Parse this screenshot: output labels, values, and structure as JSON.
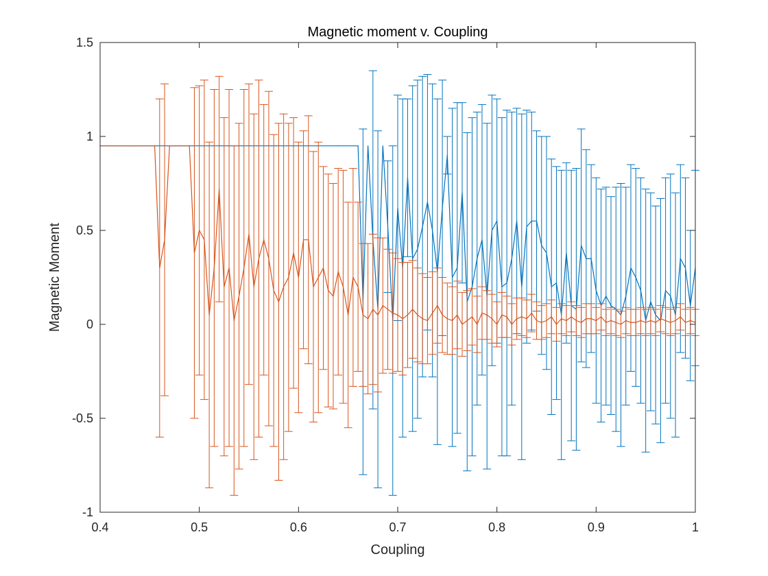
{
  "chart_data": {
    "type": "line",
    "title": "Magnetic moment v. Coupling",
    "xlabel": "Coupling",
    "ylabel": "Magnetic Moment",
    "xlim": [
      0.4,
      1
    ],
    "ylim": [
      -1,
      1.5
    ],
    "xticks": [
      0.4,
      0.5,
      0.6,
      0.7,
      0.8,
      0.9,
      1
    ],
    "yticks": [
      -1,
      -0.5,
      0,
      0.5,
      1,
      1.5
    ],
    "xtick_labels": [
      "0.4",
      "0.5",
      "0.6",
      "0.7",
      "0.8",
      "0.9",
      "1"
    ],
    "ytick_labels": [
      "-1",
      "-0.5",
      "0",
      "0.5",
      "1",
      "1.5"
    ],
    "grid": false,
    "error_bars": true,
    "series": [
      {
        "color": "#0072BD",
        "x": [
          0.4,
          0.43,
          0.46,
          0.49,
          0.52,
          0.55,
          0.58,
          0.61,
          0.64,
          0.66,
          0.665,
          0.67,
          0.675,
          0.68,
          0.685,
          0.69,
          0.695,
          0.7,
          0.705,
          0.71,
          0.715,
          0.72,
          0.725,
          0.73,
          0.735,
          0.74,
          0.745,
          0.75,
          0.755,
          0.76,
          0.765,
          0.77,
          0.775,
          0.78,
          0.785,
          0.79,
          0.795,
          0.8,
          0.805,
          0.81,
          0.815,
          0.82,
          0.825,
          0.83,
          0.835,
          0.84,
          0.845,
          0.85,
          0.855,
          0.86,
          0.865,
          0.87,
          0.875,
          0.88,
          0.885,
          0.89,
          0.895,
          0.9,
          0.905,
          0.91,
          0.915,
          0.92,
          0.925,
          0.93,
          0.935,
          0.94,
          0.945,
          0.95,
          0.955,
          0.96,
          0.965,
          0.97,
          0.975,
          0.98,
          0.985,
          0.99,
          0.995,
          1.0
        ],
        "y": [
          0.95,
          0.95,
          0.95,
          0.95,
          0.95,
          0.95,
          0.95,
          0.95,
          0.95,
          0.95,
          0.12,
          0.95,
          0.45,
          0.08,
          0.95,
          0.52,
          0.02,
          0.62,
          0.3,
          0.78,
          0.35,
          0.4,
          0.52,
          0.65,
          0.5,
          0.28,
          0.62,
          0.9,
          0.25,
          0.3,
          0.7,
          0.12,
          0.2,
          0.35,
          0.45,
          0.15,
          0.5,
          0.55,
          0.2,
          0.22,
          0.35,
          0.55,
          0.2,
          0.52,
          0.55,
          0.55,
          0.42,
          0.38,
          0.2,
          0.22,
          0.05,
          0.38,
          0.1,
          0.08,
          0.42,
          0.35,
          0.35,
          0.18,
          0.1,
          0.15,
          0.1,
          0.08,
          0.05,
          0.15,
          0.3,
          0.25,
          0.18,
          0.02,
          0.12,
          0.05,
          0.02,
          0.18,
          0.15,
          0.05,
          0.35,
          0.3,
          0.1,
          0.3
        ],
        "err": [
          0,
          0,
          0,
          0,
          0,
          0,
          0,
          0,
          0,
          0,
          0.92,
          0,
          0.9,
          0.95,
          0,
          0.35,
          0.93,
          0.6,
          0.9,
          0.42,
          0.92,
          0.9,
          0.8,
          0.68,
          0.78,
          0.92,
          0.68,
          0.1,
          0.9,
          0.88,
          0.48,
          0.9,
          0.9,
          0.78,
          0.72,
          0.92,
          0.72,
          0.65,
          0.9,
          0.92,
          0.78,
          0.6,
          0.92,
          0.62,
          0.58,
          0.48,
          0.58,
          0.62,
          0.68,
          0.62,
          0.77,
          0.48,
          0.72,
          0.75,
          0.62,
          0.58,
          0.5,
          0.6,
          0.62,
          0.58,
          0.58,
          0.65,
          0.7,
          0.58,
          0.55,
          0.58,
          0.6,
          0.7,
          0.58,
          0.58,
          0.65,
          0.6,
          0.65,
          0.65,
          0.5,
          0.48,
          0.4,
          0.52
        ]
      },
      {
        "color": "#D95319",
        "x": [
          0.4,
          0.43,
          0.455,
          0.46,
          0.465,
          0.47,
          0.49,
          0.495,
          0.5,
          0.505,
          0.51,
          0.515,
          0.52,
          0.525,
          0.53,
          0.535,
          0.54,
          0.545,
          0.55,
          0.555,
          0.56,
          0.565,
          0.57,
          0.575,
          0.58,
          0.585,
          0.59,
          0.595,
          0.6,
          0.605,
          0.61,
          0.615,
          0.62,
          0.625,
          0.63,
          0.635,
          0.64,
          0.645,
          0.65,
          0.655,
          0.66,
          0.665,
          0.67,
          0.675,
          0.68,
          0.685,
          0.69,
          0.695,
          0.7,
          0.705,
          0.71,
          0.715,
          0.72,
          0.725,
          0.73,
          0.735,
          0.74,
          0.745,
          0.75,
          0.755,
          0.76,
          0.765,
          0.77,
          0.775,
          0.78,
          0.785,
          0.79,
          0.795,
          0.8,
          0.805,
          0.81,
          0.815,
          0.82,
          0.825,
          0.83,
          0.835,
          0.84,
          0.845,
          0.85,
          0.855,
          0.86,
          0.865,
          0.87,
          0.875,
          0.88,
          0.885,
          0.89,
          0.895,
          0.9,
          0.905,
          0.91,
          0.915,
          0.92,
          0.925,
          0.93,
          0.935,
          0.94,
          0.945,
          0.95,
          0.955,
          0.96,
          0.965,
          0.97,
          0.975,
          0.98,
          0.985,
          0.99,
          0.995,
          1.0
        ],
        "y": [
          0.95,
          0.95,
          0.95,
          0.3,
          0.45,
          0.95,
          0.95,
          0.38,
          0.5,
          0.45,
          0.05,
          0.3,
          0.72,
          0.2,
          0.3,
          0.02,
          0.15,
          0.3,
          0.48,
          0.2,
          0.35,
          0.45,
          0.35,
          0.18,
          0.12,
          0.2,
          0.25,
          0.38,
          0.25,
          0.45,
          0.45,
          0.2,
          0.25,
          0.3,
          0.18,
          0.15,
          0.28,
          0.2,
          0.05,
          0.25,
          0.2,
          0.05,
          0.03,
          0.08,
          0.05,
          0.1,
          0.08,
          0.06,
          0.05,
          0.03,
          0.05,
          0.08,
          0.05,
          0.03,
          0.02,
          0.06,
          0.1,
          0.05,
          0.03,
          0.02,
          0.05,
          0.0,
          0.02,
          0.04,
          0.0,
          0.06,
          0.05,
          0.03,
          0.0,
          0.05,
          0.04,
          0.0,
          0.03,
          0.04,
          0.03,
          0.06,
          0.02,
          0.01,
          0.02,
          0.04,
          0.0,
          0.03,
          0.02,
          0.04,
          0.02,
          0.01,
          0.03,
          0.03,
          0.02,
          0.04,
          0.01,
          0.02,
          0.01,
          0.0,
          0.02,
          0.01,
          0.01,
          0.02,
          0.01,
          0.02,
          0.01,
          0.03,
          0.02,
          0.01,
          0.02,
          0.04,
          0.01,
          0.02,
          0.01
        ],
        "err": [
          0,
          0,
          0,
          0.9,
          0.83,
          0,
          0,
          0.88,
          0.77,
          0.85,
          0.92,
          0.95,
          0.6,
          0.9,
          0.95,
          0.93,
          0.92,
          0.95,
          0.8,
          0.92,
          0.95,
          0.72,
          0.89,
          0.83,
          0.95,
          0.92,
          0.82,
          0.72,
          0.72,
          0.58,
          0.66,
          0.72,
          0.72,
          0.54,
          0.62,
          0.6,
          0.55,
          0.62,
          0.6,
          0.58,
          0.45,
          0.38,
          0.4,
          0.4,
          0.41,
          0.36,
          0.32,
          0.32,
          0.3,
          0.3,
          0.28,
          0.26,
          0.25,
          0.24,
          0.23,
          0.22,
          0.2,
          0.2,
          0.19,
          0.18,
          0.18,
          0.17,
          0.16,
          0.15,
          0.15,
          0.14,
          0.13,
          0.13,
          0.12,
          0.12,
          0.11,
          0.11,
          0.11,
          0.1,
          0.1,
          0.1,
          0.1,
          0.09,
          0.09,
          0.09,
          0.09,
          0.08,
          0.08,
          0.08,
          0.08,
          0.08,
          0.08,
          0.08,
          0.07,
          0.07,
          0.07,
          0.07,
          0.07,
          0.07,
          0.07,
          0.07,
          0.07,
          0.07,
          0.07,
          0.07,
          0.07,
          0.07,
          0.07,
          0.07,
          0.07,
          0.07,
          0.07,
          0.07,
          0.07
        ]
      }
    ]
  }
}
